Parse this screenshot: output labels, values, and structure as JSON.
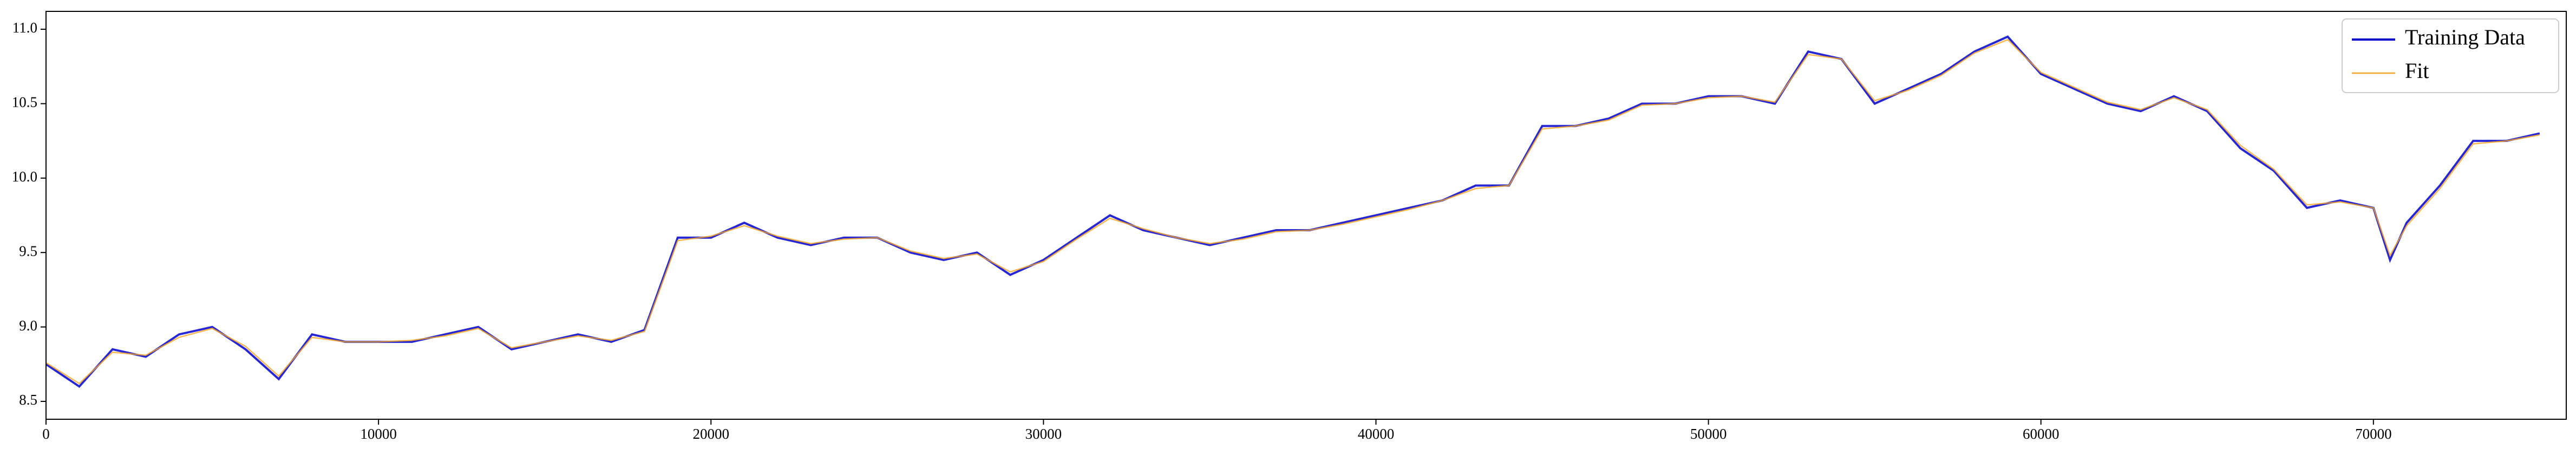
{
  "chart_data": {
    "type": "line",
    "x": [
      0,
      1000,
      2000,
      3000,
      4000,
      5000,
      6000,
      7000,
      8000,
      9000,
      10000,
      11000,
      12000,
      13000,
      14000,
      15000,
      16000,
      17000,
      18000,
      19000,
      20000,
      21000,
      22000,
      23000,
      24000,
      25000,
      26000,
      27000,
      28000,
      29000,
      30000,
      31000,
      32000,
      33000,
      34000,
      35000,
      36000,
      37000,
      38000,
      39000,
      40000,
      41000,
      42000,
      43000,
      44000,
      45000,
      46000,
      47000,
      48000,
      49000,
      50000,
      51000,
      52000,
      53000,
      54000,
      55000,
      56000,
      57000,
      58000,
      59000,
      60000,
      61000,
      62000,
      63000,
      64000,
      65000,
      66000,
      67000,
      68000,
      69000,
      70000,
      70500,
      71000,
      72000,
      73000,
      74000,
      75000
    ],
    "series": [
      {
        "name": "Training Data",
        "color": "#0000cc",
        "values": [
          8.75,
          8.6,
          8.85,
          8.8,
          8.95,
          9.0,
          8.85,
          8.65,
          8.95,
          8.9,
          8.9,
          8.9,
          8.95,
          9.0,
          8.85,
          8.9,
          8.95,
          8.9,
          8.98,
          9.6,
          9.6,
          9.7,
          9.6,
          9.55,
          9.6,
          9.6,
          9.5,
          9.45,
          9.5,
          9.35,
          9.45,
          9.6,
          9.75,
          9.65,
          9.6,
          9.55,
          9.6,
          9.65,
          9.65,
          9.7,
          9.75,
          9.8,
          9.85,
          9.95,
          9.95,
          10.35,
          10.35,
          10.4,
          10.5,
          10.5,
          10.55,
          10.55,
          10.5,
          10.85,
          10.8,
          10.5,
          10.6,
          10.7,
          10.85,
          10.95,
          10.7,
          10.6,
          10.5,
          10.45,
          10.55,
          10.45,
          10.2,
          10.05,
          9.8,
          9.85,
          9.8,
          9.45,
          9.7,
          9.95,
          10.25,
          10.25,
          10.3
        ]
      },
      {
        "name": "Fit",
        "color": "#f5a623",
        "values": [
          8.76,
          8.62,
          8.83,
          8.81,
          8.93,
          8.99,
          8.87,
          8.67,
          8.93,
          8.9,
          8.9,
          8.91,
          8.94,
          8.99,
          8.86,
          8.9,
          8.94,
          8.91,
          8.97,
          9.58,
          9.61,
          9.68,
          9.61,
          9.56,
          9.59,
          9.6,
          9.51,
          9.46,
          9.49,
          9.37,
          9.44,
          9.59,
          9.73,
          9.66,
          9.6,
          9.56,
          9.59,
          9.64,
          9.65,
          9.69,
          9.74,
          9.79,
          9.85,
          9.93,
          9.95,
          10.33,
          10.35,
          10.39,
          10.49,
          10.5,
          10.54,
          10.55,
          10.51,
          10.83,
          10.8,
          10.52,
          10.59,
          10.69,
          10.84,
          10.93,
          10.71,
          10.61,
          10.51,
          10.46,
          10.54,
          10.46,
          10.22,
          10.06,
          9.82,
          9.84,
          9.8,
          9.48,
          9.68,
          9.93,
          10.23,
          10.25,
          10.29
        ]
      }
    ],
    "xlim": [
      0,
      75800
    ],
    "xticks": [
      0,
      10000,
      20000,
      30000,
      40000,
      50000,
      60000,
      70000
    ],
    "ylim": [
      8.38,
      11.12
    ],
    "yticks": [
      8.5,
      {
        "value": 9,
        "label": "9.0"
      },
      9.5,
      {
        "value": 10,
        "label": "10.0"
      },
      10.5,
      {
        "value": 11,
        "label": "11.0"
      }
    ],
    "legend": "upper right",
    "grid": false
  }
}
